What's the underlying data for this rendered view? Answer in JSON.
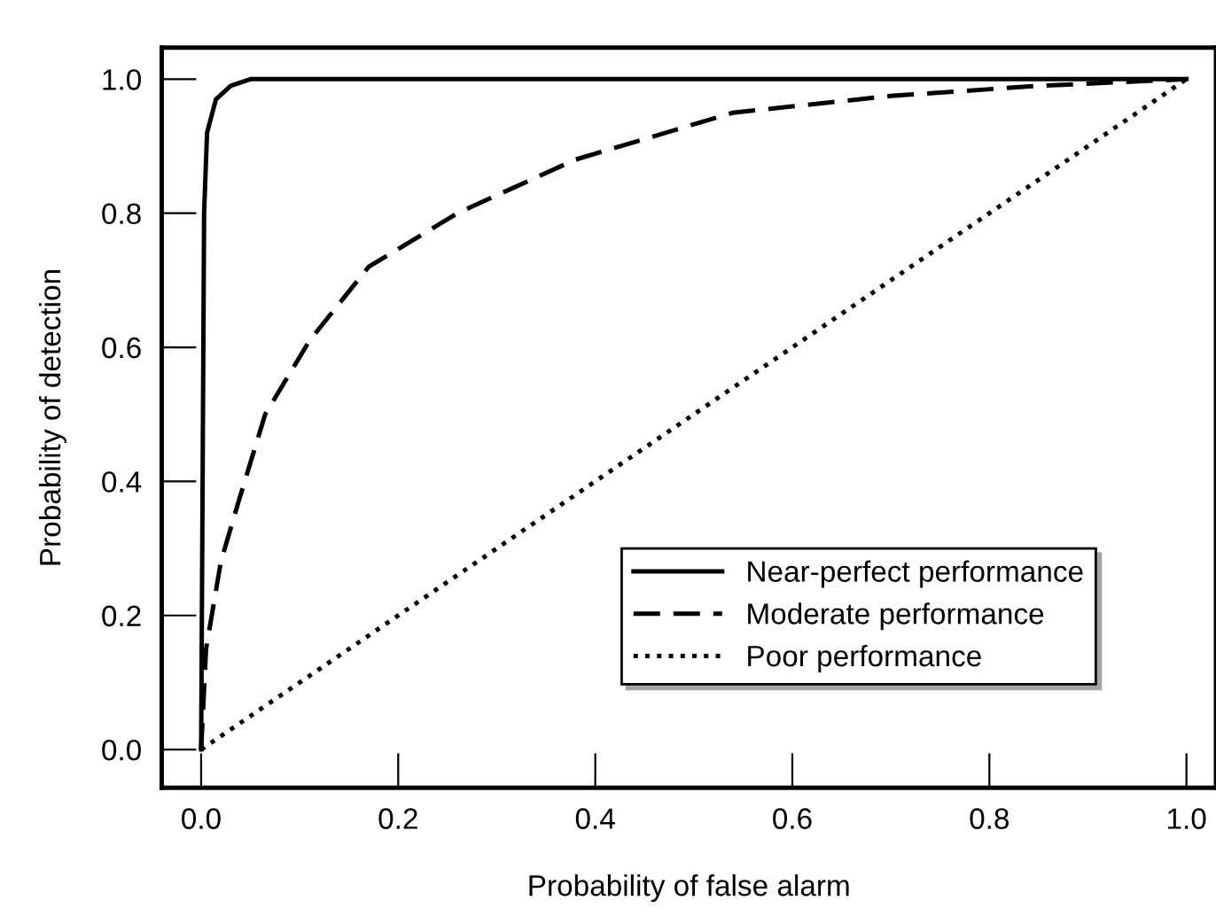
{
  "chart_data": {
    "type": "line",
    "xlabel": "Probability of false alarm",
    "ylabel": "Probability of detection",
    "xlim": [
      -0.04,
      1.03
    ],
    "ylim": [
      -0.057,
      1.047
    ],
    "xticks": [
      {
        "value": 0,
        "label": "0.0"
      },
      0.2,
      0.4,
      0.6,
      0.8,
      {
        "value": 1,
        "label": "1.0"
      }
    ],
    "yticks": [
      {
        "value": 0,
        "label": "0.0"
      },
      0.2,
      0.4,
      0.6,
      0.8,
      {
        "value": 1,
        "label": "1.0"
      }
    ],
    "grid": false,
    "legend": "bottom right",
    "marker": "none",
    "series": [
      {
        "name": "Near-perfect performance",
        "color": "#000000",
        "line_style": "solid",
        "x": [
          0,
          0.003,
          0.006,
          0.015,
          0.03,
          0.05,
          1.0
        ],
        "values": [
          0,
          0.8,
          0.92,
          0.97,
          0.99,
          1.0,
          1.0
        ]
      },
      {
        "name": "Moderate performance",
        "color": "#000000",
        "line_style": "dashed",
        "x": [
          0,
          0.005,
          0.02,
          0.038,
          0.065,
          0.11,
          0.17,
          0.26,
          0.38,
          0.54,
          0.7,
          0.85,
          1.0
        ],
        "values": [
          0,
          0.15,
          0.28,
          0.37,
          0.5,
          0.61,
          0.72,
          0.8,
          0.88,
          0.95,
          0.975,
          0.99,
          1.0
        ]
      },
      {
        "name": "Poor performance",
        "color": "#000000",
        "line_style": "dotted",
        "x": [
          0,
          1.0
        ],
        "values": [
          0,
          1.0
        ]
      }
    ]
  }
}
